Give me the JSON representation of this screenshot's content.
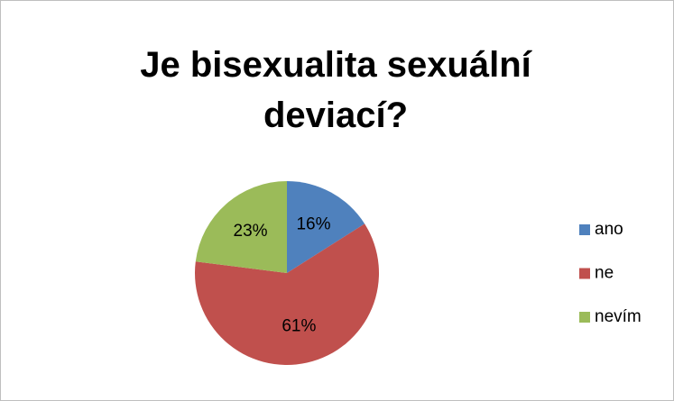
{
  "chart_data": {
    "type": "pie",
    "title": "Je bisexualita sexuální deviací?",
    "categories": [
      "ano",
      "ne",
      "nevím"
    ],
    "values": [
      16,
      61,
      23
    ],
    "value_labels": [
      "16%",
      "61%",
      "23%"
    ],
    "colors": [
      "#4f81bd",
      "#c0504d",
      "#9bbb59"
    ],
    "legend": "right"
  }
}
